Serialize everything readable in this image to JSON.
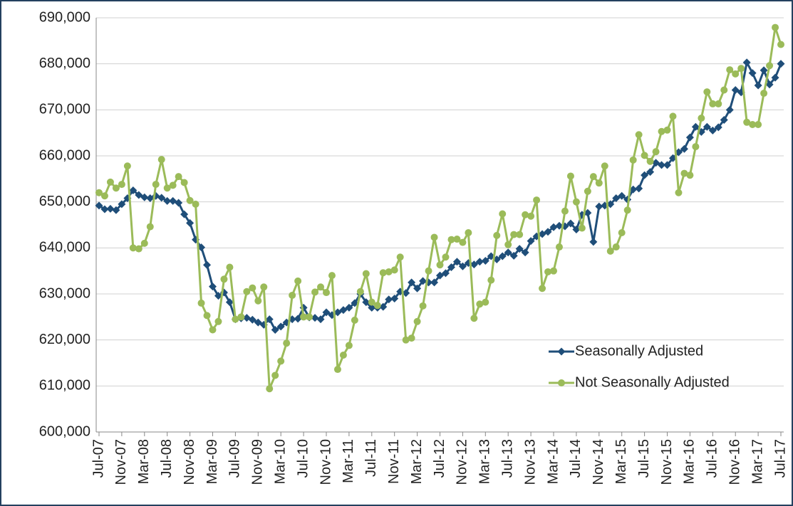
{
  "chart_data": {
    "type": "line",
    "categories": [
      "Jul-07",
      null,
      null,
      null,
      "Nov-07",
      null,
      null,
      null,
      "Mar-08",
      null,
      null,
      null,
      "Jul-08",
      null,
      null,
      null,
      "Nov-08",
      null,
      null,
      null,
      "Mar-09",
      null,
      null,
      null,
      "Jul-09",
      null,
      null,
      null,
      "Nov-09",
      null,
      null,
      null,
      "Mar-10",
      null,
      null,
      null,
      "Jul-10",
      null,
      null,
      null,
      "Nov-10",
      null,
      null,
      null,
      "Mar-11",
      null,
      null,
      null,
      "Jul-11",
      null,
      null,
      null,
      "Nov-11",
      null,
      null,
      null,
      "Mar-12",
      null,
      null,
      null,
      "Jul-12",
      null,
      null,
      null,
      "Nov-12",
      null,
      null,
      null,
      "Mar-13",
      null,
      null,
      null,
      "Jul-13",
      null,
      null,
      null,
      "Nov-13",
      null,
      null,
      null,
      "Mar-14",
      null,
      null,
      null,
      "Jul-14",
      null,
      null,
      null,
      "Nov-14",
      null,
      null,
      null,
      "Mar-15",
      null,
      null,
      null,
      "Jul-15",
      null,
      null,
      null,
      "Nov-15",
      null,
      null,
      null,
      "Mar-16",
      null,
      null,
      null,
      "Jul-16",
      null,
      null,
      null,
      "Nov-16",
      null,
      null,
      null,
      "Mar-17",
      null,
      null,
      null,
      "Jul-17"
    ],
    "series": [
      {
        "name": "Seasonally Adjusted",
        "color": "#1f4e79",
        "marker": "diamond",
        "values": [
          649200,
          648400,
          648500,
          648200,
          649500,
          650800,
          652500,
          651500,
          651000,
          650800,
          651300,
          650900,
          650200,
          650200,
          649800,
          647300,
          645400,
          641800,
          640100,
          636300,
          631600,
          629600,
          630300,
          628200,
          624500,
          624700,
          624800,
          624400,
          623800,
          623300,
          624500,
          622200,
          622900,
          623800,
          624500,
          624600,
          627000,
          624900,
          624800,
          624500,
          626000,
          625400,
          626000,
          626500,
          627000,
          628000,
          630000,
          628200,
          627000,
          627000,
          627200,
          628800,
          629000,
          630500,
          630200,
          632500,
          631200,
          632800,
          632500,
          632500,
          634000,
          634500,
          635800,
          637000,
          636000,
          636700,
          636400,
          637000,
          637200,
          638200,
          637500,
          638200,
          639000,
          638300,
          639800,
          639000,
          641500,
          642500,
          643000,
          643500,
          644500,
          644800,
          644700,
          645300,
          644000,
          647200,
          647600,
          641300,
          649000,
          649200,
          649500,
          650800,
          651300,
          650500,
          652700,
          652900,
          655800,
          656500,
          658500,
          658000,
          658000,
          659500,
          660800,
          661500,
          664000,
          666300,
          665200,
          666300,
          665500,
          666200,
          667800,
          670000,
          674300,
          673800,
          680300,
          678000,
          675300,
          678600,
          675500,
          677000,
          680000
        ]
      },
      {
        "name": "Not Seasonally Adjusted",
        "color": "#9bbb59",
        "marker": "circle",
        "values": [
          652000,
          651300,
          654300,
          653000,
          653800,
          657800,
          640000,
          639800,
          641000,
          644600,
          653800,
          659200,
          653000,
          653600,
          655500,
          654200,
          650300,
          649500,
          628000,
          625300,
          622200,
          624000,
          633200,
          635800,
          624500,
          625000,
          630500,
          631300,
          628500,
          631500,
          609400,
          612300,
          615400,
          619300,
          629700,
          632800,
          625000,
          625000,
          630400,
          631500,
          630300,
          634000,
          613600,
          616700,
          618800,
          624300,
          630500,
          634400,
          628200,
          627500,
          634600,
          634800,
          635200,
          638000,
          620000,
          620400,
          624000,
          627400,
          635000,
          642300,
          636300,
          638000,
          641800,
          641900,
          641200,
          643300,
          624700,
          627800,
          628200,
          633000,
          642700,
          647400,
          640700,
          642900,
          642900,
          647200,
          646900,
          650400,
          631200,
          634800,
          635000,
          640200,
          648000,
          655600,
          650000,
          644300,
          652300,
          655500,
          654100,
          657800,
          639300,
          640200,
          643300,
          648200,
          659100,
          664600,
          660100,
          658800,
          660900,
          665300,
          665600,
          668600,
          652000,
          656200,
          655800,
          662000,
          668200,
          673900,
          671300,
          671300,
          674300,
          678700,
          677800,
          679000,
          667300,
          666800,
          666800,
          673600,
          679600,
          687900,
          684200
        ]
      }
    ],
    "ylim": [
      600000,
      690000
    ],
    "yticks": [
      {
        "value": 600000,
        "label": "600,000"
      },
      {
        "value": 610000,
        "label": "610,000"
      },
      {
        "value": 620000,
        "label": "620,000"
      },
      {
        "value": 630000,
        "label": "630,000"
      },
      {
        "value": 640000,
        "label": "640,000"
      },
      {
        "value": 650000,
        "label": "650,000"
      },
      {
        "value": 660000,
        "label": "660,000"
      },
      {
        "value": 670000,
        "label": "670,000"
      },
      {
        "value": 680000,
        "label": "680,000"
      },
      {
        "value": 690000,
        "label": "690,000"
      }
    ],
    "grid": true
  }
}
